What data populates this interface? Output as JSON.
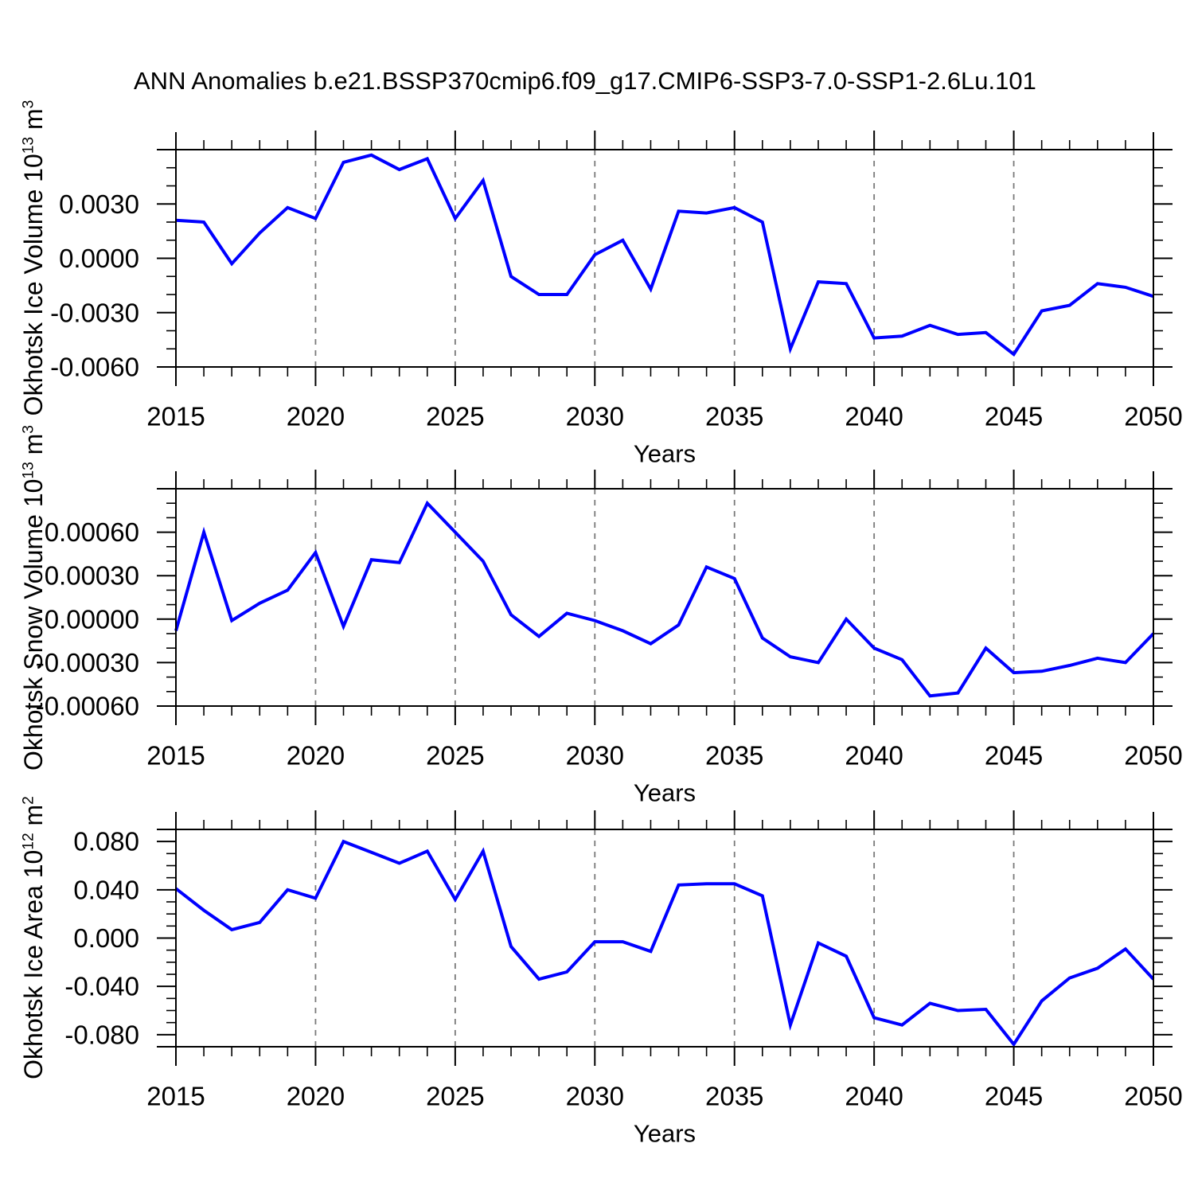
{
  "title": "ANN Anomalies b.e21.BSSP370cmip6.f09_g17.CMIP6-SSP3-7.0-SSP1-2.6Lu.101",
  "xlabel": "Years",
  "colors": {
    "line": "#0000ff",
    "grid": "#7a7a7a",
    "axis": "#000000",
    "text": "#000000"
  },
  "chart_data": [
    {
      "type": "line",
      "name": "okhotsk-ice-volume",
      "ylabel": {
        "prefix": "Okhotsk Ice Volume 10",
        "sup1": "13",
        "mid": " m",
        "sup2": "3"
      },
      "xlim": [
        2015,
        2050
      ],
      "ylim": [
        -0.006,
        0.006
      ],
      "x": [
        2015,
        2016,
        2017,
        2018,
        2019,
        2020,
        2021,
        2022,
        2023,
        2024,
        2025,
        2026,
        2027,
        2028,
        2029,
        2030,
        2031,
        2032,
        2033,
        2034,
        2035,
        2036,
        2037,
        2038,
        2039,
        2040,
        2041,
        2042,
        2043,
        2044,
        2045,
        2046,
        2047,
        2048,
        2049,
        2050
      ],
      "values": [
        0.0021,
        0.002,
        -0.0003,
        0.0014,
        0.0028,
        0.0022,
        0.0053,
        0.0057,
        0.0049,
        0.0055,
        0.0022,
        0.0043,
        -0.001,
        -0.002,
        -0.002,
        0.0002,
        0.001,
        -0.0017,
        0.0026,
        0.0025,
        0.0028,
        0.002,
        -0.005,
        -0.0013,
        -0.0014,
        -0.0044,
        -0.0043,
        -0.0037,
        -0.0042,
        -0.0041,
        -0.0053,
        -0.0029,
        -0.0026,
        -0.0014,
        -0.0016,
        -0.0021
      ],
      "xticks": [
        2015,
        2020,
        2025,
        2030,
        2035,
        2040,
        2045,
        2050
      ],
      "grid_years": [
        2020,
        2025,
        2030,
        2035,
        2040,
        2045
      ],
      "yticks": [
        {
          "label": "0.0030",
          "value": 0.003
        },
        {
          "label": "0.0000",
          "value": 0.0
        },
        {
          "label": "-0.0030",
          "value": -0.003
        },
        {
          "label": "-0.0060",
          "value": -0.006
        }
      ],
      "yticks_major": [
        -0.003,
        0.0,
        0.003
      ],
      "yticks_minor": [
        -0.005,
        -0.004,
        -0.002,
        -0.001,
        0.001,
        0.002,
        0.004,
        0.005
      ]
    },
    {
      "type": "line",
      "name": "okhotsk-snow-volume",
      "ylabel": {
        "prefix": "Okhotsk Snow Volume 10",
        "sup1": "13",
        "mid": " m",
        "sup2": "3"
      },
      "xlim": [
        2015,
        2050
      ],
      "ylim": [
        -0.0006,
        0.0009
      ],
      "x": [
        2015,
        2016,
        2017,
        2018,
        2019,
        2020,
        2021,
        2022,
        2023,
        2024,
        2025,
        2026,
        2027,
        2028,
        2029,
        2030,
        2031,
        2032,
        2033,
        2034,
        2035,
        2036,
        2037,
        2038,
        2039,
        2040,
        2041,
        2042,
        2043,
        2044,
        2045,
        2046,
        2047,
        2048,
        2049,
        2050
      ],
      "values": [
        -8e-05,
        0.0006,
        -1e-05,
        0.00011,
        0.0002,
        0.00046,
        -5e-05,
        0.00041,
        0.00039,
        0.0008,
        0.0006,
        0.0004,
        3e-05,
        -0.00012,
        4e-05,
        -1e-05,
        -8e-05,
        -0.00017,
        -4e-05,
        0.00036,
        0.00028,
        -0.00013,
        -0.00026,
        -0.0003,
        0.0,
        -0.0002,
        -0.00028,
        -0.00053,
        -0.00051,
        -0.0002,
        -0.00037,
        -0.00036,
        -0.00032,
        -0.00027,
        -0.0003,
        -0.0001
      ],
      "xticks": [
        2015,
        2020,
        2025,
        2030,
        2035,
        2040,
        2045,
        2050
      ],
      "grid_years": [
        2020,
        2025,
        2030,
        2035,
        2040,
        2045
      ],
      "yticks": [
        {
          "label": "0.00060",
          "value": 0.0006
        },
        {
          "label": "0.00030",
          "value": 0.0003
        },
        {
          "label": "0.00000",
          "value": 0.0
        },
        {
          "label": "-0.00030",
          "value": -0.0003
        },
        {
          "label": "-0.00060",
          "value": -0.0006
        }
      ],
      "yticks_major": [
        -0.0003,
        0.0,
        0.0003,
        0.0006
      ],
      "yticks_minor": [
        -0.0005,
        -0.0004,
        -0.0002,
        -0.0001,
        0.0001,
        0.0002,
        0.0004,
        0.0005,
        0.0007,
        0.0008
      ]
    },
    {
      "type": "line",
      "name": "okhotsk-ice-area",
      "ylabel": {
        "prefix": "Okhotsk Ice Area 10",
        "sup1": "12",
        "mid": " m",
        "sup2": "2"
      },
      "xlim": [
        2015,
        2050
      ],
      "ylim": [
        -0.09,
        0.09
      ],
      "x": [
        2015,
        2016,
        2017,
        2018,
        2019,
        2020,
        2021,
        2022,
        2023,
        2024,
        2025,
        2026,
        2027,
        2028,
        2029,
        2030,
        2031,
        2032,
        2033,
        2034,
        2035,
        2036,
        2037,
        2038,
        2039,
        2040,
        2041,
        2042,
        2043,
        2044,
        2045,
        2046,
        2047,
        2048,
        2049,
        2050
      ],
      "values": [
        0.041,
        0.023,
        0.007,
        0.013,
        0.04,
        0.033,
        0.08,
        0.071,
        0.062,
        0.072,
        0.032,
        0.072,
        -0.007,
        -0.034,
        -0.028,
        -0.003,
        -0.003,
        -0.011,
        0.044,
        0.045,
        0.045,
        0.035,
        -0.072,
        -0.004,
        -0.015,
        -0.066,
        -0.072,
        -0.054,
        -0.06,
        -0.059,
        -0.088,
        -0.052,
        -0.033,
        -0.025,
        -0.009,
        -0.034
      ],
      "xticks": [
        2015,
        2020,
        2025,
        2030,
        2035,
        2040,
        2045,
        2050
      ],
      "grid_years": [
        2020,
        2025,
        2030,
        2035,
        2040,
        2045
      ],
      "yticks": [
        {
          "label": "0.080",
          "value": 0.08
        },
        {
          "label": "0.040",
          "value": 0.04
        },
        {
          "label": "0.000",
          "value": 0.0
        },
        {
          "label": "-0.040",
          "value": -0.04
        },
        {
          "label": "-0.080",
          "value": -0.08
        }
      ],
      "yticks_major": [
        -0.08,
        -0.04,
        0.0,
        0.04,
        0.08
      ],
      "yticks_minor": [
        -0.07,
        -0.06,
        -0.05,
        -0.03,
        -0.02,
        -0.01,
        0.01,
        0.02,
        0.03,
        0.05,
        0.06,
        0.07
      ]
    }
  ]
}
